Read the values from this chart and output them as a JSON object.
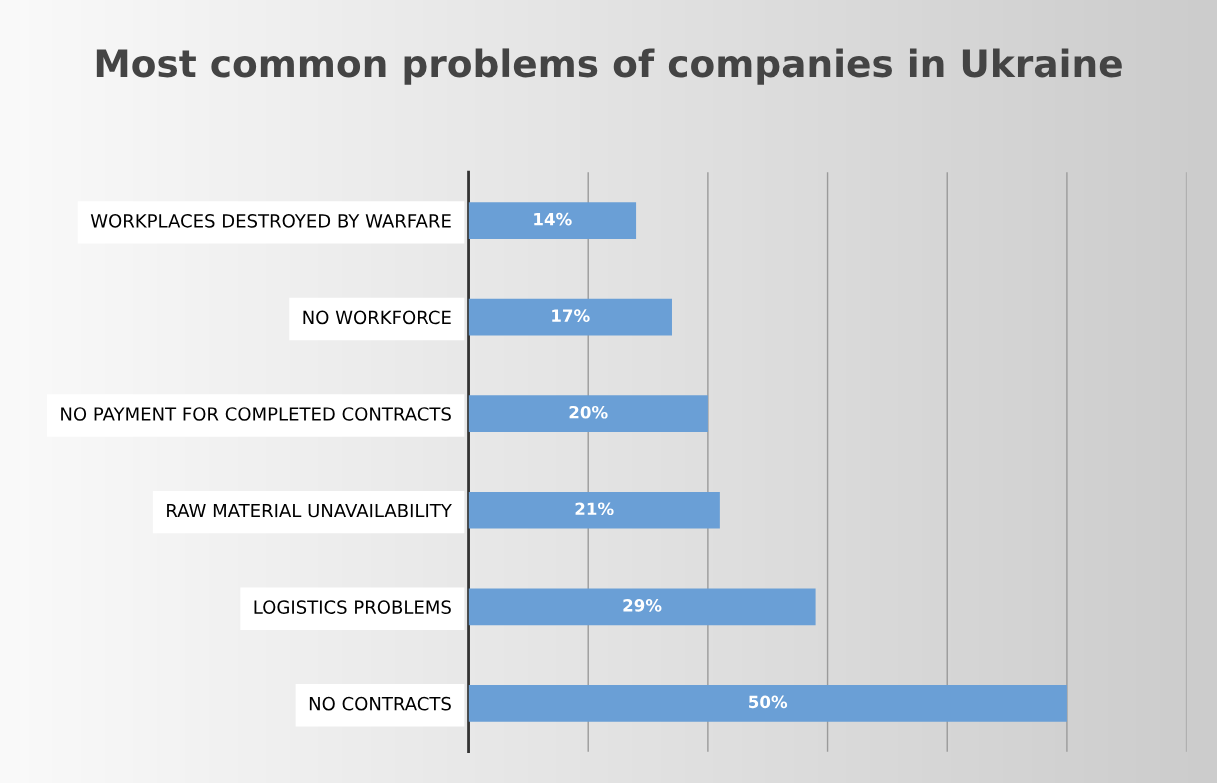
{
  "chart_data": {
    "type": "bar",
    "orientation": "horizontal",
    "title": "Most common problems of companies in Ukraine",
    "categories": [
      "WORKPLACES DESTROYED BY WARFARE",
      "NO WORKFORCE",
      "NO PAYMENT FOR COMPLETED CONTRACTS",
      "RAW MATERIAL UNAVAILABILITY",
      "LOGISTICS PROBLEMS",
      "NO CONTRACTS"
    ],
    "values": [
      14,
      17,
      20,
      21,
      29,
      50
    ],
    "value_labels": [
      "14%",
      "17%",
      "20%",
      "21%",
      "29%",
      "50%"
    ],
    "color": "#6a9fd6",
    "xlim": [
      0,
      60
    ],
    "xticks": [
      {
        "value": 0,
        "label": null
      },
      {
        "value": 10,
        "label": null
      },
      {
        "value": 20,
        "label": null
      },
      {
        "value": 30,
        "label": null
      },
      {
        "value": 40,
        "label": null
      },
      {
        "value": 50,
        "label": null
      },
      {
        "value": 60,
        "label": null
      }
    ],
    "grid": "x",
    "tick_labels": "y"
  }
}
